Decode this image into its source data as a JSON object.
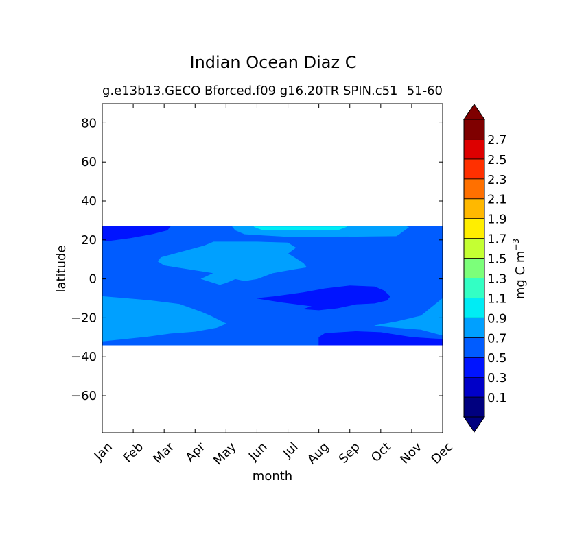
{
  "chart_data": {
    "type": "heatmap",
    "title": "Indian Ocean Diaz C",
    "subtitle_left": "g.e13b13.GECO Bforced.f09 g16.20TR SPIN.c51",
    "subtitle_right": "51-60",
    "xlabel": "month",
    "ylabel": "latitude",
    "x_ticks": [
      "Jan",
      "Feb",
      "Mar",
      "Apr",
      "May",
      "Jun",
      "Jul",
      "Aug",
      "Sep",
      "Oct",
      "Nov",
      "Dec"
    ],
    "y_ticks": [
      80,
      60,
      40,
      20,
      0,
      -20,
      -40,
      -60
    ],
    "ylim": [
      -79,
      90
    ],
    "data_lat_range": [
      -34,
      27
    ],
    "colorbar": {
      "label": "mg C m",
      "label_exp": "−3",
      "tick_labels": [
        "0.1",
        "0.3",
        "0.5",
        "0.7",
        "0.9",
        "1.1",
        "1.3",
        "1.5",
        "1.7",
        "1.9",
        "2.1",
        "2.3",
        "2.5",
        "2.7"
      ],
      "colors": [
        "#00007f",
        "#0000c8",
        "#0014ff",
        "#005cff",
        "#00a0ff",
        "#00ecf4",
        "#33ffc4",
        "#7cff7a",
        "#c4ff33",
        "#ffee00",
        "#ffb800",
        "#ff7000",
        "#ff3000",
        "#dd0000",
        "#7f0000"
      ],
      "extend": "both"
    },
    "regions": [
      {
        "band": "0.5-0.7",
        "desc": "background",
        "color": "#005cff"
      },
      {
        "band": "0.3-0.5",
        "desc": "north strip Jan-Mar near 20-27N",
        "color": "#0014ff"
      },
      {
        "band": "0.7-0.9",
        "desc": "central patch Mar-Jul, -5 to 20N",
        "color": "#00a0ff"
      },
      {
        "band": "0.7-0.9",
        "desc": "south band Jan-May, -30 to -10",
        "color": "#00a0ff"
      },
      {
        "band": "0.7-0.9",
        "desc": "south band Oct-Dec, -30 to -10",
        "color": "#00a0ff"
      },
      {
        "band": "0.7-0.9",
        "desc": "top band Jun-Sep near 22-27N",
        "color": "#00a0ff"
      },
      {
        "band": "0.9-1.1",
        "desc": "Jun-Aug near 25-27N",
        "color": "#00ecf4"
      },
      {
        "band": "0.3-0.5",
        "desc": "Jul-Sep near -15 to -4",
        "color": "#0014ff"
      },
      {
        "band": "0.3-0.5",
        "desc": "Aug-Dec near -34 to -27",
        "color": "#0014ff"
      }
    ]
  }
}
